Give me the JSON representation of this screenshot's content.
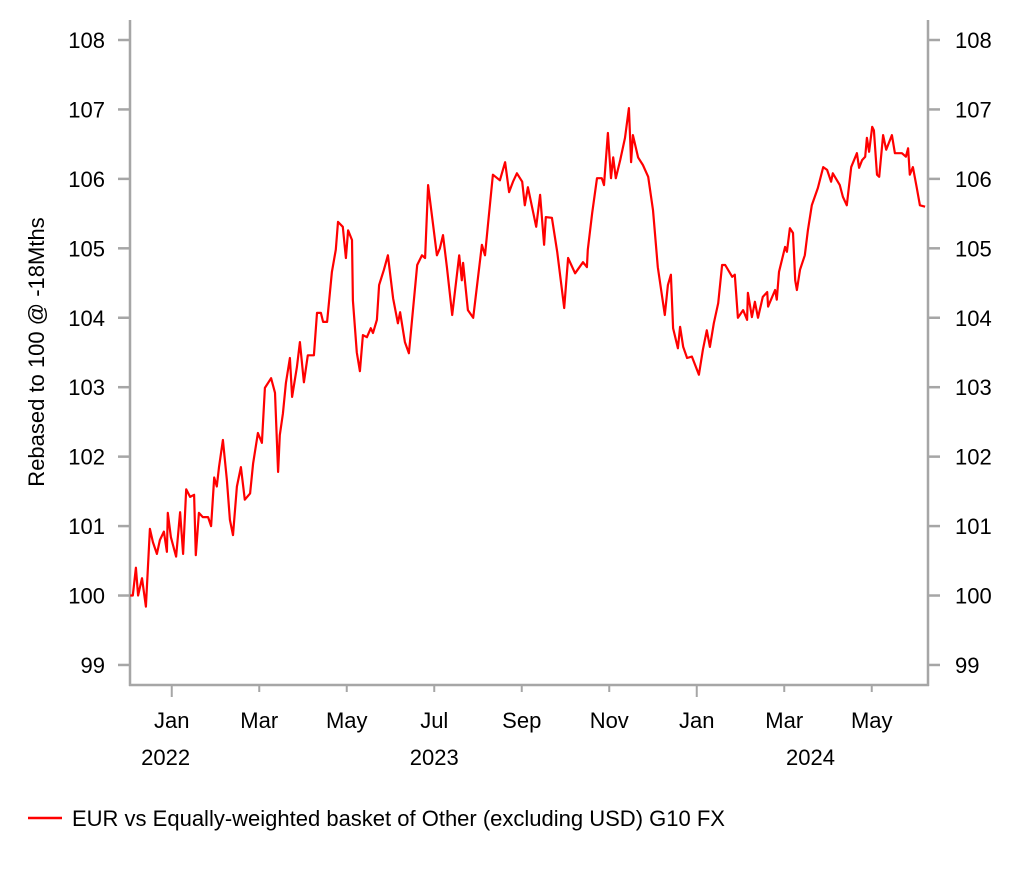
{
  "chart_data": {
    "type": "line",
    "title": "",
    "ylabel": "Rebased to 100 @ -18Mths",
    "xlabel": "",
    "x_unit": "months since 2022-12-01",
    "ylim": [
      99,
      108
    ],
    "xlim": [
      0,
      18.3
    ],
    "y_ticks": [
      99,
      100,
      101,
      102,
      103,
      104,
      105,
      106,
      107,
      108
    ],
    "y_tick_labels": [
      "99",
      "100",
      "101",
      "102",
      "103",
      "104",
      "105",
      "106",
      "107",
      "108"
    ],
    "x_ticks": [
      {
        "x": 1,
        "label": "Jan",
        "major": true
      },
      {
        "x": 3,
        "label": "Mar",
        "major": false
      },
      {
        "x": 5,
        "label": "May",
        "major": false
      },
      {
        "x": 7,
        "label": "Jul",
        "major": false
      },
      {
        "x": 9,
        "label": "Sep",
        "major": false
      },
      {
        "x": 11,
        "label": "Nov",
        "major": false
      },
      {
        "x": 13,
        "label": "Jan",
        "major": true
      },
      {
        "x": 15,
        "label": "Mar",
        "major": false
      },
      {
        "x": 17,
        "label": "May",
        "major": false
      }
    ],
    "year_labels": [
      {
        "x": 0.3,
        "label": "2022"
      },
      {
        "x": 7,
        "label": "2023"
      },
      {
        "x": 15.6,
        "label": "2024"
      }
    ],
    "grid": false,
    "legend_position": "bottom-left",
    "series": [
      {
        "name": "EUR vs Equally-weighted basket of Other (excluding USD) G10 FX",
        "color": "#ff0000",
        "points": [
          [
            0.05,
            100.0
          ],
          [
            0.11,
            100.0
          ],
          [
            0.18,
            100.4
          ],
          [
            0.23,
            100.0
          ],
          [
            0.32,
            100.25
          ],
          [
            0.41,
            99.84
          ],
          [
            0.5,
            100.96
          ],
          [
            0.57,
            100.77
          ],
          [
            0.66,
            100.6
          ],
          [
            0.73,
            100.8
          ],
          [
            0.82,
            100.92
          ],
          [
            0.89,
            100.63
          ],
          [
            0.91,
            101.19
          ],
          [
            0.98,
            100.84
          ],
          [
            1.1,
            100.56
          ],
          [
            1.19,
            101.2
          ],
          [
            1.26,
            100.6
          ],
          [
            1.33,
            101.53
          ],
          [
            1.42,
            101.42
          ],
          [
            1.51,
            101.45
          ],
          [
            1.55,
            100.58
          ],
          [
            1.62,
            101.19
          ],
          [
            1.71,
            101.13
          ],
          [
            1.83,
            101.13
          ],
          [
            1.9,
            101.0
          ],
          [
            1.97,
            101.7
          ],
          [
            2.03,
            101.57
          ],
          [
            2.08,
            101.85
          ],
          [
            2.17,
            102.24
          ],
          [
            2.26,
            101.66
          ],
          [
            2.33,
            101.09
          ],
          [
            2.4,
            100.87
          ],
          [
            2.49,
            101.57
          ],
          [
            2.58,
            101.85
          ],
          [
            2.67,
            101.38
          ],
          [
            2.79,
            101.47
          ],
          [
            2.86,
            101.9
          ],
          [
            2.97,
            102.34
          ],
          [
            3.06,
            102.2
          ],
          [
            3.13,
            102.99
          ],
          [
            3.27,
            103.13
          ],
          [
            3.36,
            102.92
          ],
          [
            3.43,
            101.78
          ],
          [
            3.47,
            102.31
          ],
          [
            3.54,
            102.62
          ],
          [
            3.61,
            103.06
          ],
          [
            3.7,
            103.42
          ],
          [
            3.75,
            102.86
          ],
          [
            3.86,
            103.29
          ],
          [
            3.93,
            103.65
          ],
          [
            4.02,
            103.07
          ],
          [
            4.11,
            103.46
          ],
          [
            4.25,
            103.46
          ],
          [
            4.32,
            104.07
          ],
          [
            4.41,
            104.07
          ],
          [
            4.46,
            103.94
          ],
          [
            4.55,
            103.94
          ],
          [
            4.66,
            104.66
          ],
          [
            4.75,
            104.98
          ],
          [
            4.8,
            105.38
          ],
          [
            4.91,
            105.31
          ],
          [
            4.98,
            104.86
          ],
          [
            5.03,
            105.26
          ],
          [
            5.12,
            105.12
          ],
          [
            5.14,
            104.25
          ],
          [
            5.23,
            103.5
          ],
          [
            5.3,
            103.23
          ],
          [
            5.37,
            103.75
          ],
          [
            5.46,
            103.72
          ],
          [
            5.55,
            103.85
          ],
          [
            5.6,
            103.78
          ],
          [
            5.69,
            103.97
          ],
          [
            5.74,
            104.47
          ],
          [
            5.85,
            104.69
          ],
          [
            5.94,
            104.9
          ],
          [
            6.06,
            104.28
          ],
          [
            6.17,
            103.92
          ],
          [
            6.22,
            104.08
          ],
          [
            6.33,
            103.65
          ],
          [
            6.42,
            103.49
          ],
          [
            6.61,
            104.76
          ],
          [
            6.72,
            104.9
          ],
          [
            6.79,
            104.86
          ],
          [
            6.86,
            105.91
          ],
          [
            6.97,
            105.36
          ],
          [
            7.06,
            104.9
          ],
          [
            7.13,
            105.0
          ],
          [
            7.2,
            105.19
          ],
          [
            7.29,
            104.73
          ],
          [
            7.41,
            104.04
          ],
          [
            7.57,
            104.9
          ],
          [
            7.63,
            104.54
          ],
          [
            7.66,
            104.79
          ],
          [
            7.77,
            104.11
          ],
          [
            7.89,
            104.0
          ],
          [
            8.09,
            105.05
          ],
          [
            8.16,
            104.9
          ],
          [
            8.23,
            105.36
          ],
          [
            8.34,
            106.06
          ],
          [
            8.5,
            105.98
          ],
          [
            8.62,
            106.24
          ],
          [
            8.71,
            105.81
          ],
          [
            8.8,
            105.96
          ],
          [
            8.89,
            106.08
          ],
          [
            9.01,
            105.96
          ],
          [
            9.07,
            105.62
          ],
          [
            9.14,
            105.88
          ],
          [
            9.33,
            105.31
          ],
          [
            9.42,
            105.77
          ],
          [
            9.51,
            105.05
          ],
          [
            9.55,
            105.45
          ],
          [
            9.69,
            105.44
          ],
          [
            9.81,
            104.95
          ],
          [
            9.97,
            104.14
          ],
          [
            10.06,
            104.86
          ],
          [
            10.22,
            104.64
          ],
          [
            10.4,
            104.8
          ],
          [
            10.49,
            104.73
          ],
          [
            10.51,
            104.98
          ],
          [
            10.61,
            105.51
          ],
          [
            10.72,
            106.01
          ],
          [
            10.83,
            106.01
          ],
          [
            10.88,
            105.91
          ],
          [
            10.97,
            106.66
          ],
          [
            11.04,
            106.01
          ],
          [
            11.09,
            106.31
          ],
          [
            11.15,
            106.01
          ],
          [
            11.25,
            106.27
          ],
          [
            11.36,
            106.59
          ],
          [
            11.45,
            107.02
          ],
          [
            11.5,
            106.24
          ],
          [
            11.54,
            106.63
          ],
          [
            11.66,
            106.31
          ],
          [
            11.77,
            106.2
          ],
          [
            11.89,
            106.03
          ],
          [
            12.0,
            105.55
          ],
          [
            12.11,
            104.73
          ],
          [
            12.27,
            104.04
          ],
          [
            12.34,
            104.47
          ],
          [
            12.41,
            104.62
          ],
          [
            12.46,
            103.85
          ],
          [
            12.57,
            103.56
          ],
          [
            12.62,
            103.87
          ],
          [
            12.69,
            103.58
          ],
          [
            12.78,
            103.42
          ],
          [
            12.89,
            103.44
          ],
          [
            13.05,
            103.18
          ],
          [
            13.14,
            103.54
          ],
          [
            13.23,
            103.82
          ],
          [
            13.3,
            103.58
          ],
          [
            13.39,
            103.92
          ],
          [
            13.49,
            104.21
          ],
          [
            13.58,
            104.76
          ],
          [
            13.65,
            104.76
          ],
          [
            13.81,
            104.59
          ],
          [
            13.87,
            104.62
          ],
          [
            13.94,
            104.0
          ],
          [
            14.06,
            104.11
          ],
          [
            14.15,
            103.97
          ],
          [
            14.17,
            104.36
          ],
          [
            14.26,
            104.01
          ],
          [
            14.33,
            104.23
          ],
          [
            14.4,
            104.0
          ],
          [
            14.51,
            104.3
          ],
          [
            14.61,
            104.37
          ],
          [
            14.63,
            104.16
          ],
          [
            14.79,
            104.4
          ],
          [
            14.83,
            104.26
          ],
          [
            14.88,
            104.66
          ],
          [
            15.02,
            105.02
          ],
          [
            15.06,
            104.95
          ],
          [
            15.13,
            105.29
          ],
          [
            15.2,
            105.22
          ],
          [
            15.25,
            104.54
          ],
          [
            15.29,
            104.4
          ],
          [
            15.36,
            104.69
          ],
          [
            15.47,
            104.9
          ],
          [
            15.54,
            105.26
          ],
          [
            15.63,
            105.62
          ],
          [
            15.77,
            105.87
          ],
          [
            15.89,
            106.17
          ],
          [
            15.98,
            106.13
          ],
          [
            16.07,
            105.96
          ],
          [
            16.11,
            106.08
          ],
          [
            16.27,
            105.91
          ],
          [
            16.34,
            105.74
          ],
          [
            16.43,
            105.62
          ],
          [
            16.53,
            106.17
          ],
          [
            16.66,
            106.37
          ],
          [
            16.71,
            106.16
          ],
          [
            16.78,
            106.27
          ],
          [
            16.85,
            106.32
          ],
          [
            16.89,
            106.59
          ],
          [
            16.94,
            106.39
          ],
          [
            17.01,
            106.75
          ],
          [
            17.05,
            106.7
          ],
          [
            17.12,
            106.06
          ],
          [
            17.17,
            106.03
          ],
          [
            17.26,
            106.63
          ],
          [
            17.33,
            106.42
          ],
          [
            17.46,
            106.63
          ],
          [
            17.53,
            106.37
          ],
          [
            17.69,
            106.37
          ],
          [
            17.78,
            106.32
          ],
          [
            17.83,
            106.44
          ],
          [
            17.87,
            106.06
          ],
          [
            17.94,
            106.17
          ],
          [
            18.03,
            105.87
          ],
          [
            18.1,
            105.62
          ],
          [
            18.22,
            105.6
          ]
        ]
      }
    ]
  }
}
